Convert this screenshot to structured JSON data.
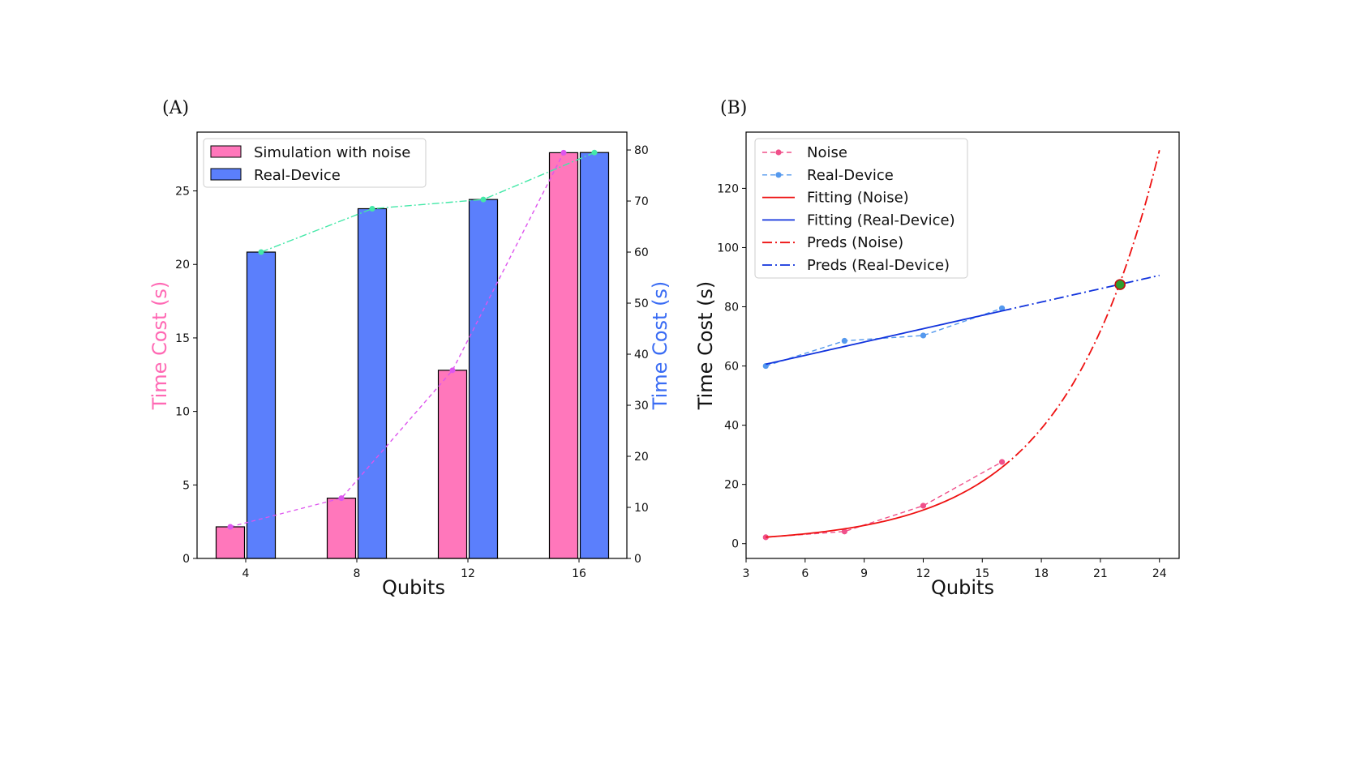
{
  "chart_data": [
    {
      "panel_label": "(A)",
      "type": "bar",
      "xlabel": "Qubits",
      "ylabel_left": "Time Cost (s)",
      "ylabel_right": "Time Cost (s)",
      "ylabel_left_color": "#ff69b4",
      "ylabel_right_color": "#3a6cf4",
      "categories": [
        "4",
        "8",
        "12",
        "16"
      ],
      "ylim_left": [
        0,
        29
      ],
      "yticks_left": [
        0,
        5,
        10,
        15,
        20,
        25
      ],
      "ylim_right": [
        0,
        83.5
      ],
      "yticks_right": [
        0,
        10,
        20,
        30,
        40,
        50,
        60,
        70,
        80
      ],
      "legend_position": "top-left",
      "series": [
        {
          "name": "Simulation with noise",
          "axis": "left",
          "color": "#ff77bb",
          "values": [
            2.15,
            4.1,
            12.8,
            27.6
          ],
          "trend_color": "#dd55ee"
        },
        {
          "name": "Real-Device",
          "axis": "right",
          "color": "#5b7ffc",
          "values": [
            60.0,
            68.5,
            70.3,
            79.5
          ],
          "trend_color": "#44e8a8"
        }
      ]
    },
    {
      "panel_label": "(B)",
      "type": "line",
      "xlabel": "Qubits",
      "ylabel": "Time Cost (s)",
      "xlim": [
        3,
        25
      ],
      "ylim": [
        -5,
        139
      ],
      "xticks": [
        3,
        6,
        9,
        12,
        15,
        18,
        21,
        24
      ],
      "yticks": [
        0,
        20,
        40,
        60,
        80,
        100,
        120
      ],
      "legend_position": "top-left",
      "series": [
        {
          "name": "Noise",
          "style": "dashed-marker",
          "color": "#f0508a",
          "x": [
            4,
            8,
            12,
            16
          ],
          "y": [
            2.15,
            4.1,
            12.8,
            27.6
          ]
        },
        {
          "name": "Real-Device",
          "style": "dashed-marker",
          "color": "#5599ee",
          "x": [
            4,
            8,
            12,
            16
          ],
          "y": [
            60.0,
            68.5,
            70.3,
            79.5
          ]
        },
        {
          "name": "Fitting (Noise)",
          "style": "solid",
          "color": "#ee1111",
          "model": "exponential",
          "a": 0.97,
          "b": 0.205,
          "range": [
            4,
            16
          ]
        },
        {
          "name": "Fitting (Real-Device)",
          "style": "solid",
          "color": "#1133dd",
          "model": "linear",
          "m": 1.5,
          "c": 54.6,
          "range": [
            4,
            16
          ]
        },
        {
          "name": "Preds (Noise)",
          "style": "dashdot",
          "color": "#ee1111",
          "model": "exponential",
          "a": 0.97,
          "b": 0.205,
          "range": [
            16,
            24
          ]
        },
        {
          "name": "Preds (Real-Device)",
          "style": "dashdot",
          "color": "#1133dd",
          "model": "linear",
          "m": 1.5,
          "c": 54.6,
          "range": [
            16,
            24
          ]
        }
      ],
      "intersection": {
        "x": 22,
        "y": 87.5,
        "color": "#2e9e2e"
      }
    }
  ]
}
